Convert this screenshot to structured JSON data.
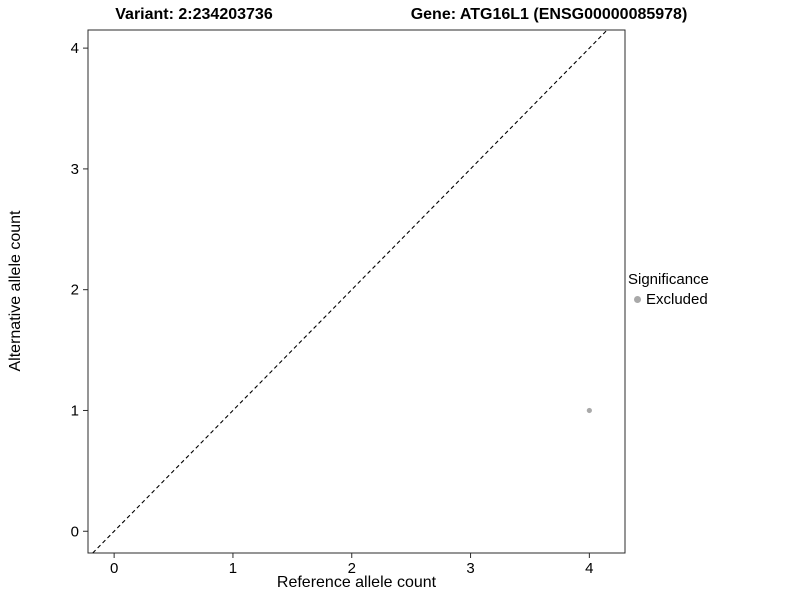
{
  "chart_data": {
    "type": "scatter",
    "title_left": "Variant: 2:234203736",
    "title_right": "Gene: ATG16L1 (ENSG00000085978)",
    "xlabel": "Reference allele count",
    "ylabel": "Alternative allele count",
    "xlim": [
      -0.22,
      4.3
    ],
    "ylim": [
      -0.18,
      4.15
    ],
    "xticks": [
      0,
      1,
      2,
      3,
      4
    ],
    "yticks": [
      0,
      1,
      2,
      3,
      4
    ],
    "grid": false,
    "panel_border_color": "#2b2b2b",
    "identity_line": {
      "equation": "y = x",
      "style": "dashed",
      "color": "#000000"
    },
    "series": [
      {
        "name": "Excluded",
        "color": "#a9a9a9",
        "points": [
          {
            "x": 4,
            "y": 1
          }
        ]
      }
    ],
    "legend": {
      "title": "Significance",
      "position": "right",
      "entries": [
        {
          "label": "Excluded",
          "color": "#a9a9a9"
        }
      ]
    }
  }
}
